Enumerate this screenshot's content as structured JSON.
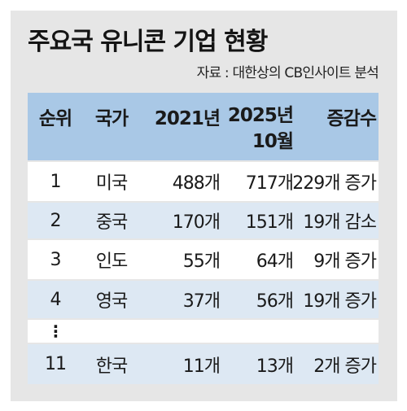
{
  "title": "주요국 유니콘 기업 현황",
  "source": "자료 : 대한상의 CB인사이트 분석",
  "table": {
    "headers": {
      "rank": "순위",
      "country": "국가",
      "y2021": "2021년",
      "y2025_line1": "2025년",
      "y2025_line2": "10월",
      "change": "증감수"
    },
    "rows": [
      {
        "rank": "1",
        "country": "미국",
        "y2021": "488개",
        "y2025": "717개",
        "change": "229개 증가"
      },
      {
        "rank": "2",
        "country": "중국",
        "y2021": "170개",
        "y2025": "151개",
        "change": "19개 감소"
      },
      {
        "rank": "3",
        "country": "인도",
        "y2021": "55개",
        "y2025": "64개",
        "change": "9개 증가"
      },
      {
        "rank": "4",
        "country": "영국",
        "y2021": "37개",
        "y2025": "56개",
        "change": "19개 증가"
      }
    ],
    "ellipsis": "⋮",
    "last_row": {
      "rank": "11",
      "country": "한국",
      "y2021": "11개",
      "y2025": "13개",
      "change": "2개 증가"
    }
  }
}
